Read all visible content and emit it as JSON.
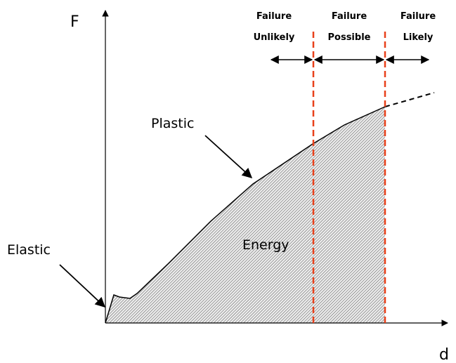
{
  "axes": {
    "y_label": "F",
    "x_label": "d"
  },
  "zones": [
    {
      "line1": "Failure",
      "line2": "Unlikely"
    },
    {
      "line1": "Failure",
      "line2": "Possible"
    },
    {
      "line1": "Failure",
      "line2": "Likely"
    }
  ],
  "annotations": {
    "plastic": "Plastic",
    "elastic": "Elastic",
    "energy": "Energy"
  }
}
